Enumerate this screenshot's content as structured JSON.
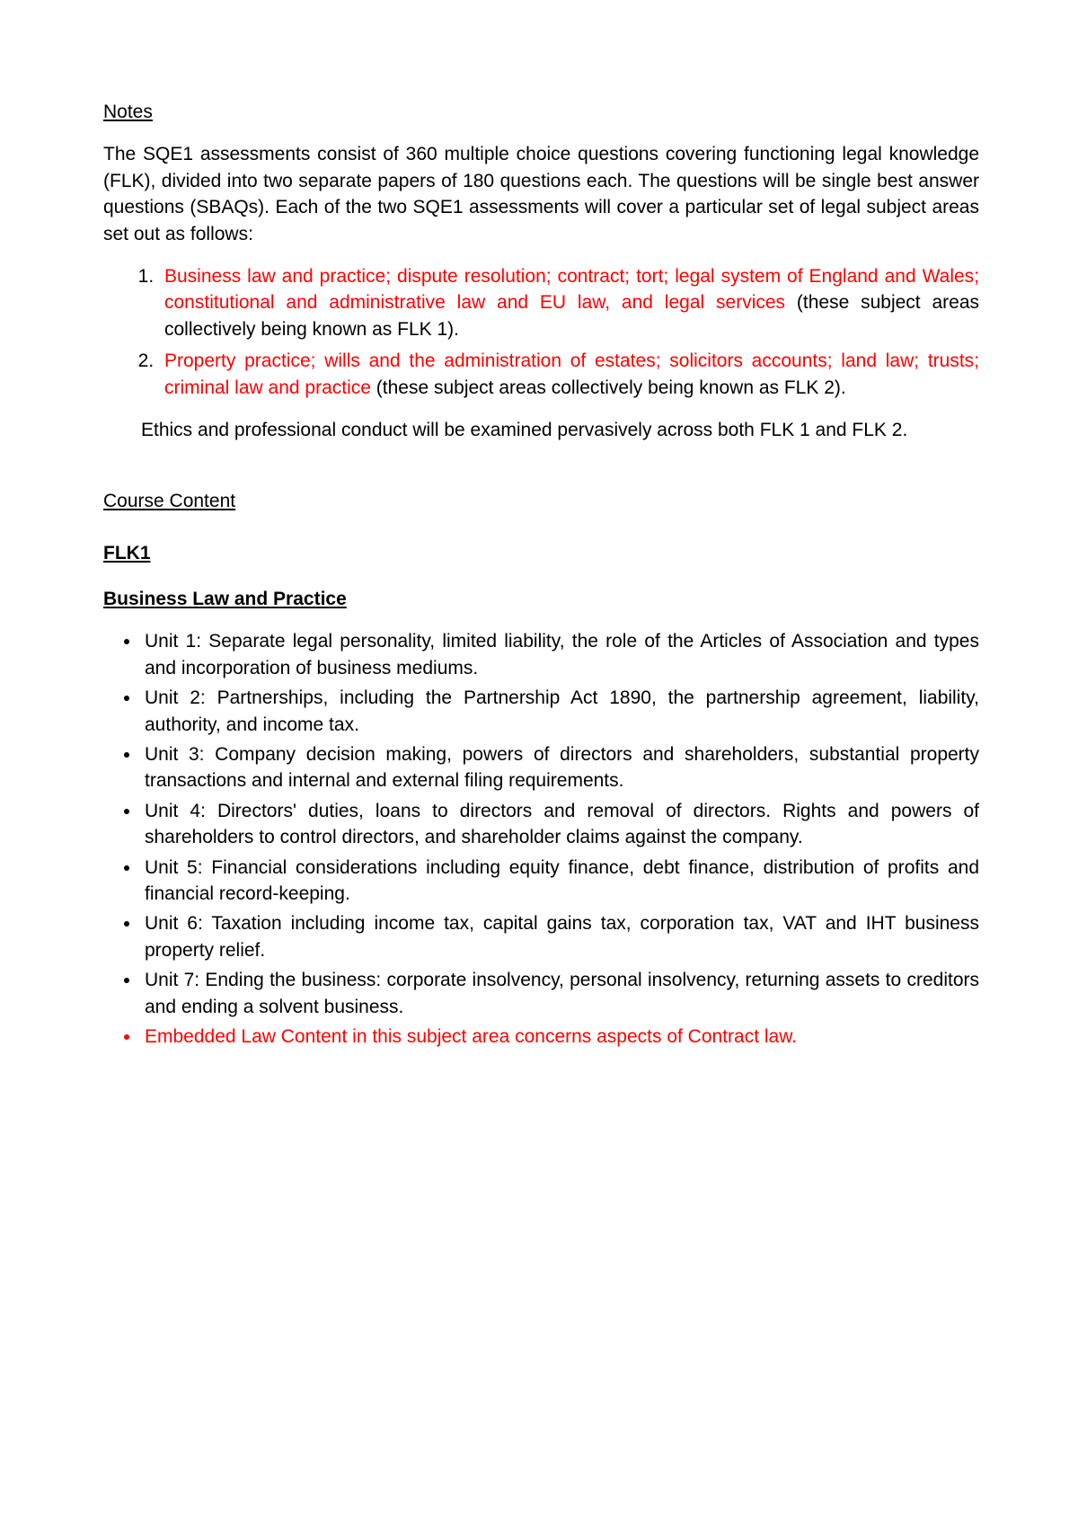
{
  "colors": {
    "text": "#000000",
    "highlight": "#ff0000",
    "background": "#ffffff"
  },
  "typography": {
    "font_family": "Arial",
    "body_fontsize_pt": 12,
    "line_height": 1.4
  },
  "notes": {
    "heading": " Notes",
    "intro": "The SQE1 assessments consist of 360 multiple choice questions covering functioning legal knowledge (FLK), divided into two separate papers of 180 questions each. The questions will be single best answer questions (SBAQs). Each of the two SQE1 assessments will cover a particular set of legal subject areas  set out as follows:",
    "items": [
      {
        "highlight": "Business law and practice; dispute resolution; contract; tort; legal system of England and Wales; constitutional and administrative law and EU law, and legal services",
        "rest": " (these subject areas collectively being known as FLK 1)."
      },
      {
        "highlight": "Property practice; wills and the administration of estates; solicitors accounts; land law; trusts; criminal law and practice",
        "rest": " (these subject areas collectively being known as FLK 2)."
      }
    ],
    "ethics": "Ethics and professional conduct will be examined pervasively across both FLK 1 and FLK 2."
  },
  "course": {
    "heading": "Course Content",
    "flk1_heading": "FLK1",
    "subject_heading": "Business Law and Practice",
    "units": [
      "Unit 1: Separate legal personality, limited liability, the role of the Articles of Association and types and incorporation of business mediums.",
      "Unit 2: Partnerships, including the Partnership Act 1890, the partnership agreement, liability, authority, and income tax.",
      "Unit 3: Company decision making, powers of directors and shareholders, substantial property transactions and internal and external filing requirements.",
      "Unit 4: Directors' duties, loans to directors and removal of directors. Rights and powers of shareholders to control directors, and shareholder claims against the company.",
      "Unit 5: Financial considerations including equity finance, debt finance, distribution of profits and financial record-keeping.",
      "Unit 6: Taxation including income tax, capital gains tax, corporation tax, VAT and IHT business property relief.",
      "Unit 7: Ending the business: corporate insolvency, personal insolvency, returning assets to creditors and ending a solvent business."
    ],
    "embedded": " Embedded Law Content in this subject area concerns aspects of Contract law."
  }
}
